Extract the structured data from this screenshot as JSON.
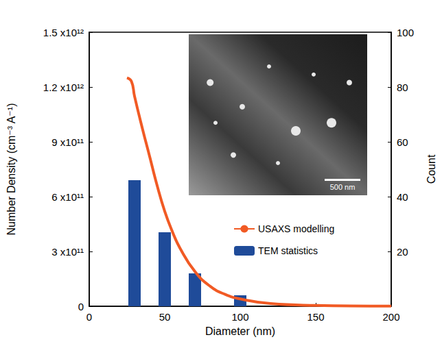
{
  "chart_data": {
    "type": "mixed",
    "xlabel": "Diameter (nm)",
    "ylabel": "Number Density (cm⁻³ A⁻¹)",
    "y2label": "Count",
    "xlim": [
      0,
      200
    ],
    "xticks": [
      0,
      50,
      100,
      150,
      200
    ],
    "ylim": [
      0,
      1500000000000
    ],
    "yticks": [
      0,
      {
        "value": 300000000000,
        "label": "3 x10¹¹"
      },
      {
        "value": 600000000000,
        "label": "6 x10¹¹"
      },
      {
        "value": 900000000000,
        "label": "9 x10¹¹"
      },
      {
        "value": 1200000000000,
        "label": "1.2 x10¹²"
      },
      {
        "value": 1500000000000,
        "label": "1.5 x10¹²"
      }
    ],
    "y2lim": [
      0,
      100
    ],
    "y2ticks": [
      20,
      40,
      60,
      80,
      100
    ],
    "grid": false,
    "legend": "right",
    "series": [
      {
        "name": "USAXS modelling",
        "type": "line",
        "color": "#f15a24",
        "x": [
          25,
          28,
          30,
          35,
          40,
          45,
          50,
          55,
          60,
          70,
          80,
          90,
          100,
          120,
          150,
          200
        ],
        "values": [
          1250000000000,
          1230000000000,
          1150000000000,
          980000000000,
          820000000000,
          660000000000,
          520000000000,
          410000000000,
          320000000000,
          190000000000,
          110000000000,
          65000000000,
          40000000000,
          15000000000,
          5000000000,
          1000000000
        ]
      },
      {
        "name": "TEM statistics",
        "type": "bar",
        "axis": "y2",
        "color": "#1f4b99",
        "x": [
          30,
          50,
          70,
          100
        ],
        "values": [
          46,
          27,
          12,
          4
        ]
      }
    ],
    "annotations": [
      "500 nm"
    ]
  }
}
